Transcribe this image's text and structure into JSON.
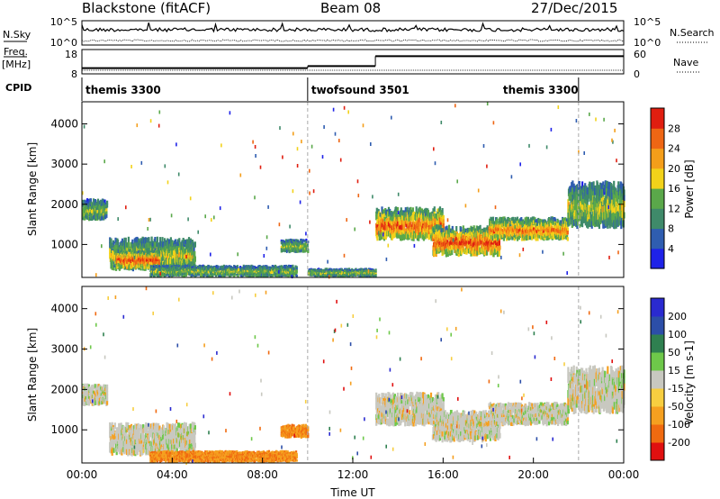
{
  "header": {
    "title": "Blackstone (fitACF)",
    "beam": "Beam 08",
    "date": "27/Dec/2015"
  },
  "side_labels": {
    "nsky": "N.Sky",
    "freq": "Freq.",
    "mhz": "[MHz]",
    "cpid": "CPID",
    "nsearch": "N.Search",
    "nave": "Nave"
  },
  "colors": {
    "power": [
      "#1e22e8",
      "#2f5db0",
      "#3f8a6a",
      "#5aa84a",
      "#f2d21a",
      "#f49e1a",
      "#ee6614",
      "#e01e10"
    ],
    "velocity": [
      "#e01010",
      "#f06a10",
      "#f5a020",
      "#f7ce40",
      "#c8c8c0",
      "#6ec84a",
      "#2f8050",
      "#2c4ea8",
      "#2a2ad0"
    ]
  },
  "chart_data": [
    {
      "type": "line",
      "name": "summary",
      "y_left_ticks": [
        "10^5",
        "10^0",
        "18",
        "8"
      ],
      "y_right_ticks": [
        "10^5",
        "10^0",
        "60",
        "0"
      ],
      "cpid_segments": [
        {
          "label": "themis 3300",
          "start": 0,
          "end": 10
        },
        {
          "label": "twofsound 3501",
          "start": 10,
          "end": 22
        },
        {
          "label": "themis 3300",
          "start": 22,
          "end": 24
        }
      ],
      "freq_steps": [
        {
          "start": 0,
          "end": 10,
          "value": 10
        },
        {
          "start": 10,
          "end": 13,
          "value": 11
        },
        {
          "start": 13,
          "end": 24,
          "value": 16
        }
      ]
    },
    {
      "type": "heatmap",
      "name": "power",
      "ylabel": "Slant Range [km]",
      "colorbar_label": "Power [dB]",
      "colorbar_ticks": [
        "28",
        "24",
        "20",
        "16",
        "12",
        "8",
        "4"
      ],
      "y_ticks": [
        1000,
        2000,
        3000,
        4000
      ],
      "ylim": [
        180,
        4550
      ],
      "x_range_hours": [
        0,
        24
      ],
      "echo_regions": [
        {
          "x0": 0.0,
          "x1": 1.1,
          "y0": 1600,
          "y1": 2150,
          "level": 0.35
        },
        {
          "x0": 1.2,
          "x1": 5.0,
          "y0": 350,
          "y1": 1200,
          "level": 0.45
        },
        {
          "x0": 1.5,
          "x1": 3.4,
          "y0": 400,
          "y1": 900,
          "level": 0.75
        },
        {
          "x0": 3.0,
          "x1": 9.5,
          "y0": 200,
          "y1": 500,
          "level": 0.35
        },
        {
          "x0": 8.8,
          "x1": 10.0,
          "y0": 800,
          "y1": 1150,
          "level": 0.35
        },
        {
          "x0": 10.0,
          "x1": 13.0,
          "y0": 200,
          "y1": 420,
          "level": 0.35
        },
        {
          "x0": 13.0,
          "x1": 16.0,
          "y0": 1100,
          "y1": 1950,
          "level": 0.7
        },
        {
          "x0": 15.5,
          "x1": 18.5,
          "y0": 700,
          "y1": 1500,
          "level": 0.75
        },
        {
          "x0": 18.0,
          "x1": 21.5,
          "y0": 1100,
          "y1": 1700,
          "level": 0.65
        },
        {
          "x0": 21.5,
          "x1": 24.0,
          "y0": 1400,
          "y1": 2600,
          "level": 0.4
        }
      ]
    },
    {
      "type": "heatmap",
      "name": "velocity",
      "xlabel": "Time UT",
      "ylabel": "Slant Range [km]",
      "colorbar_label": "Velocity [m s-1]",
      "colorbar_ticks": [
        "200",
        "100",
        "50",
        "15",
        "-15",
        "-50",
        "-100",
        "-200"
      ],
      "y_ticks": [
        1000,
        2000,
        3000,
        4000
      ],
      "ylim": [
        180,
        4550
      ],
      "x_ticks": [
        "00:00",
        "04:00",
        "08:00",
        "12:00",
        "16:00",
        "20:00",
        "00:00"
      ],
      "x_range_hours": [
        0,
        24
      ],
      "echo_regions": [
        {
          "x0": 0.0,
          "x1": 1.1,
          "y0": 1600,
          "y1": 2150,
          "level": 0.5
        },
        {
          "x0": 1.2,
          "x1": 5.0,
          "y0": 350,
          "y1": 1200,
          "level": 0.4
        },
        {
          "x0": 3.0,
          "x1": 9.5,
          "y0": 200,
          "y1": 500,
          "level": 0.25
        },
        {
          "x0": 8.8,
          "x1": 10.0,
          "y0": 800,
          "y1": 1150,
          "level": 0.25
        },
        {
          "x0": 13.0,
          "x1": 16.0,
          "y0": 1100,
          "y1": 1950,
          "level": 0.5
        },
        {
          "x0": 15.5,
          "x1": 18.5,
          "y0": 700,
          "y1": 1500,
          "level": 0.5
        },
        {
          "x0": 18.0,
          "x1": 21.5,
          "y0": 1100,
          "y1": 1700,
          "level": 0.5
        },
        {
          "x0": 21.5,
          "x1": 24.0,
          "y0": 1400,
          "y1": 2600,
          "level": 0.5
        }
      ]
    }
  ]
}
